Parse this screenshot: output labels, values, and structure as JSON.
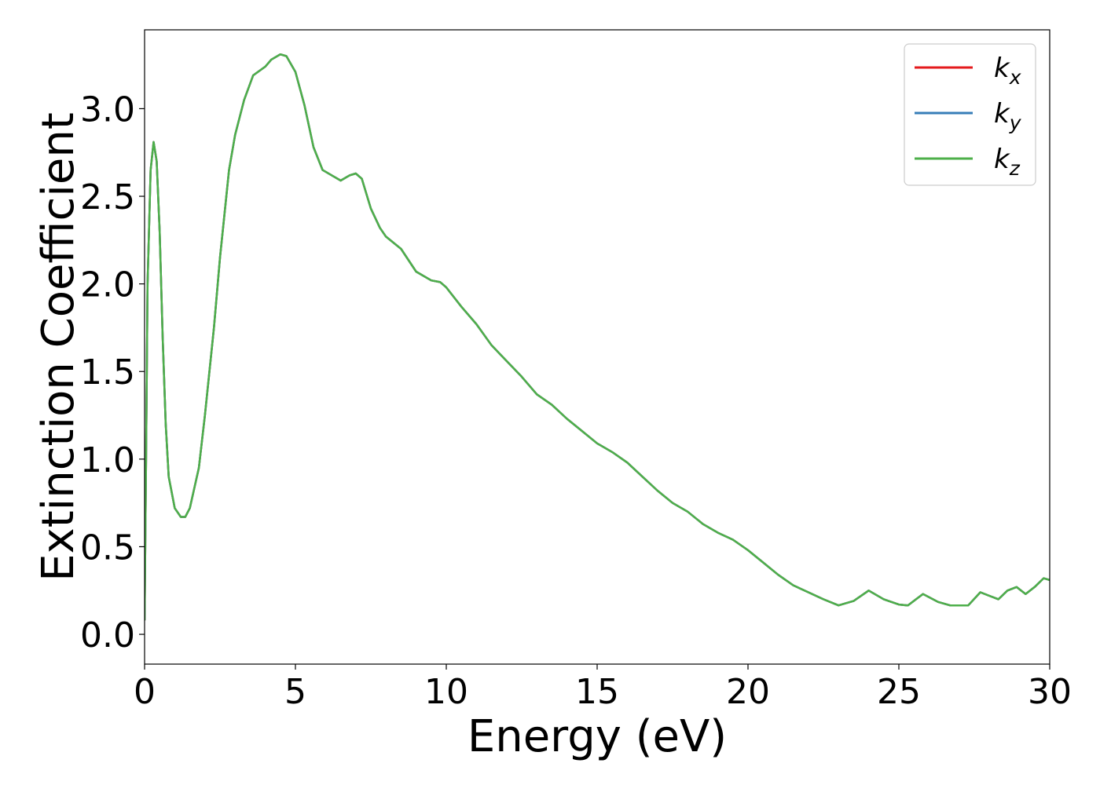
{
  "chart_data": {
    "type": "line",
    "title": "",
    "xlabel": "Energy (eV)",
    "ylabel": "Extinction Coefficient",
    "xlim": [
      0,
      30
    ],
    "ylim": [
      -0.17,
      3.45
    ],
    "xticks": [
      0,
      5,
      10,
      15,
      20,
      25,
      30
    ],
    "xtick_labels": [
      "0",
      "5",
      "10",
      "15",
      "20",
      "25",
      "30"
    ],
    "yticks": [
      0.0,
      0.5,
      1.0,
      1.5,
      2.0,
      2.5,
      3.0
    ],
    "ytick_labels": [
      "0.0",
      "0.5",
      "1.0",
      "1.5",
      "2.0",
      "2.5",
      "3.0"
    ],
    "grid": false,
    "legend_position": "top-right",
    "x": [
      0,
      0.05,
      0.1,
      0.2,
      0.3,
      0.4,
      0.5,
      0.6,
      0.7,
      0.8,
      1.0,
      1.2,
      1.35,
      1.5,
      1.8,
      2.0,
      2.3,
      2.5,
      2.8,
      3.0,
      3.3,
      3.6,
      4.0,
      4.2,
      4.5,
      4.7,
      5.0,
      5.3,
      5.6,
      5.9,
      6.2,
      6.5,
      6.8,
      7.0,
      7.2,
      7.5,
      7.8,
      8.0,
      8.5,
      9.0,
      9.5,
      9.8,
      10.0,
      10.5,
      11.0,
      11.5,
      12.0,
      12.5,
      13.0,
      13.5,
      14.0,
      14.5,
      15.0,
      15.5,
      16.0,
      16.5,
      17.0,
      17.5,
      18.0,
      18.5,
      19.0,
      19.5,
      20.0,
      20.5,
      21.0,
      21.5,
      22.0,
      22.5,
      23.0,
      23.5,
      24.0,
      24.5,
      25.0,
      25.3,
      25.8,
      26.3,
      26.7,
      27.0,
      27.3,
      27.7,
      28.0,
      28.3,
      28.6,
      28.9,
      29.2,
      29.5,
      29.8,
      30.0
    ],
    "series": [
      {
        "name": "kx",
        "color": "#e41a1c",
        "values": [
          0.08,
          1.0,
          2.0,
          2.65,
          2.81,
          2.7,
          2.3,
          1.7,
          1.2,
          0.9,
          0.72,
          0.67,
          0.67,
          0.72,
          0.95,
          1.25,
          1.75,
          2.15,
          2.65,
          2.85,
          3.05,
          3.19,
          3.24,
          3.28,
          3.31,
          3.3,
          3.21,
          3.02,
          2.78,
          2.65,
          2.62,
          2.59,
          2.62,
          2.63,
          2.6,
          2.43,
          2.32,
          2.27,
          2.2,
          2.07,
          2.02,
          2.01,
          1.98,
          1.87,
          1.77,
          1.65,
          1.56,
          1.47,
          1.37,
          1.31,
          1.23,
          1.16,
          1.09,
          1.04,
          0.98,
          0.9,
          0.82,
          0.75,
          0.7,
          0.63,
          0.58,
          0.54,
          0.48,
          0.41,
          0.34,
          0.28,
          0.24,
          0.2,
          0.165,
          0.19,
          0.25,
          0.2,
          0.17,
          0.165,
          0.23,
          0.185,
          0.165,
          0.165,
          0.165,
          0.24,
          0.22,
          0.2,
          0.25,
          0.27,
          0.23,
          0.27,
          0.32,
          0.31
        ]
      },
      {
        "name": "ky",
        "color": "#377eb8",
        "values": [
          0.08,
          1.0,
          2.0,
          2.65,
          2.81,
          2.7,
          2.3,
          1.7,
          1.2,
          0.9,
          0.72,
          0.67,
          0.67,
          0.72,
          0.95,
          1.25,
          1.75,
          2.15,
          2.65,
          2.85,
          3.05,
          3.19,
          3.24,
          3.28,
          3.31,
          3.3,
          3.21,
          3.02,
          2.78,
          2.65,
          2.62,
          2.59,
          2.62,
          2.63,
          2.6,
          2.43,
          2.32,
          2.27,
          2.2,
          2.07,
          2.02,
          2.01,
          1.98,
          1.87,
          1.77,
          1.65,
          1.56,
          1.47,
          1.37,
          1.31,
          1.23,
          1.16,
          1.09,
          1.04,
          0.98,
          0.9,
          0.82,
          0.75,
          0.7,
          0.63,
          0.58,
          0.54,
          0.48,
          0.41,
          0.34,
          0.28,
          0.24,
          0.2,
          0.165,
          0.19,
          0.25,
          0.2,
          0.17,
          0.165,
          0.23,
          0.185,
          0.165,
          0.165,
          0.165,
          0.24,
          0.22,
          0.2,
          0.25,
          0.27,
          0.23,
          0.27,
          0.32,
          0.31
        ]
      },
      {
        "name": "kz",
        "color": "#4daf4a",
        "values": [
          0.08,
          1.0,
          2.0,
          2.65,
          2.81,
          2.7,
          2.3,
          1.7,
          1.2,
          0.9,
          0.72,
          0.67,
          0.67,
          0.72,
          0.95,
          1.25,
          1.75,
          2.15,
          2.65,
          2.85,
          3.05,
          3.19,
          3.24,
          3.28,
          3.31,
          3.3,
          3.21,
          3.02,
          2.78,
          2.65,
          2.62,
          2.59,
          2.62,
          2.63,
          2.6,
          2.43,
          2.32,
          2.27,
          2.2,
          2.07,
          2.02,
          2.01,
          1.98,
          1.87,
          1.77,
          1.65,
          1.56,
          1.47,
          1.37,
          1.31,
          1.23,
          1.16,
          1.09,
          1.04,
          0.98,
          0.9,
          0.82,
          0.75,
          0.7,
          0.63,
          0.58,
          0.54,
          0.48,
          0.41,
          0.34,
          0.28,
          0.24,
          0.2,
          0.165,
          0.19,
          0.25,
          0.2,
          0.17,
          0.165,
          0.23,
          0.185,
          0.165,
          0.165,
          0.165,
          0.24,
          0.22,
          0.2,
          0.25,
          0.27,
          0.23,
          0.27,
          0.32,
          0.31
        ]
      }
    ],
    "legend": [
      {
        "base": "k",
        "sub": "x",
        "color": "#e41a1c"
      },
      {
        "base": "k",
        "sub": "y",
        "color": "#377eb8"
      },
      {
        "base": "k",
        "sub": "z",
        "color": "#4daf4a"
      }
    ]
  }
}
